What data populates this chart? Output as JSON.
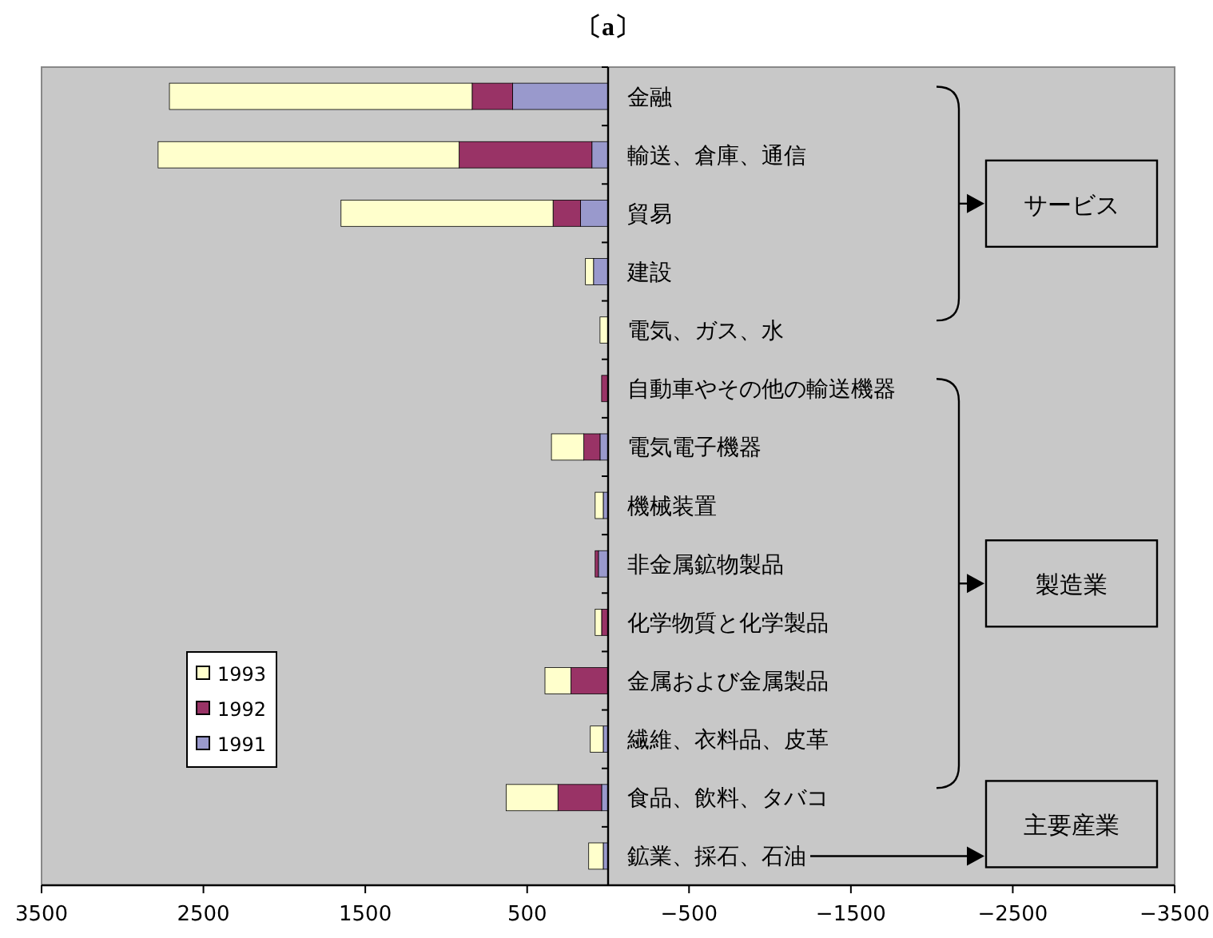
{
  "chart_data": {
    "type": "bar",
    "orientation": "horizontal",
    "stacked": true,
    "title": "〔a〕",
    "categories": [
      "金融",
      "輸送、倉庫、通信",
      "貿易",
      "建設",
      "電気、ガス、水",
      "自動車やその他の輸送機器",
      "電気電子機器",
      "機械装置",
      "非金属鉱物製品",
      "化学物質と化学製品",
      "金属および金属製品",
      "繊維、衣料品、皮革",
      "食品、飲料、タバコ",
      "鉱業、採石、石油"
    ],
    "series": [
      {
        "name": "1991",
        "color": "#9999cc",
        "values": [
          590,
          100,
          170,
          90,
          null,
          null,
          50,
          30,
          60,
          null,
          null,
          30,
          40,
          30
        ]
      },
      {
        "name": "1992",
        "color": "#993366",
        "values": [
          250,
          820,
          170,
          null,
          null,
          40,
          100,
          null,
          20,
          40,
          230,
          null,
          270,
          null
        ]
      },
      {
        "name": "1993",
        "color": "#ffffcc",
        "values": [
          1870,
          1860,
          1310,
          50,
          50,
          null,
          200,
          50,
          null,
          40,
          160,
          80,
          320,
          90
        ]
      }
    ],
    "xlim": [
      3500,
      -3500
    ],
    "xticks": [
      3500,
      2500,
      1500,
      500,
      {
        "value": -500,
        "label": "−500"
      },
      {
        "value": -1500,
        "label": "−1500"
      },
      {
        "value": -2500,
        "label": "−2500"
      },
      {
        "value": -3500,
        "label": "−3500"
      }
    ],
    "grid": false,
    "legend": "left",
    "annotations": [
      "サービス",
      "製造業",
      "主要産業"
    ]
  }
}
